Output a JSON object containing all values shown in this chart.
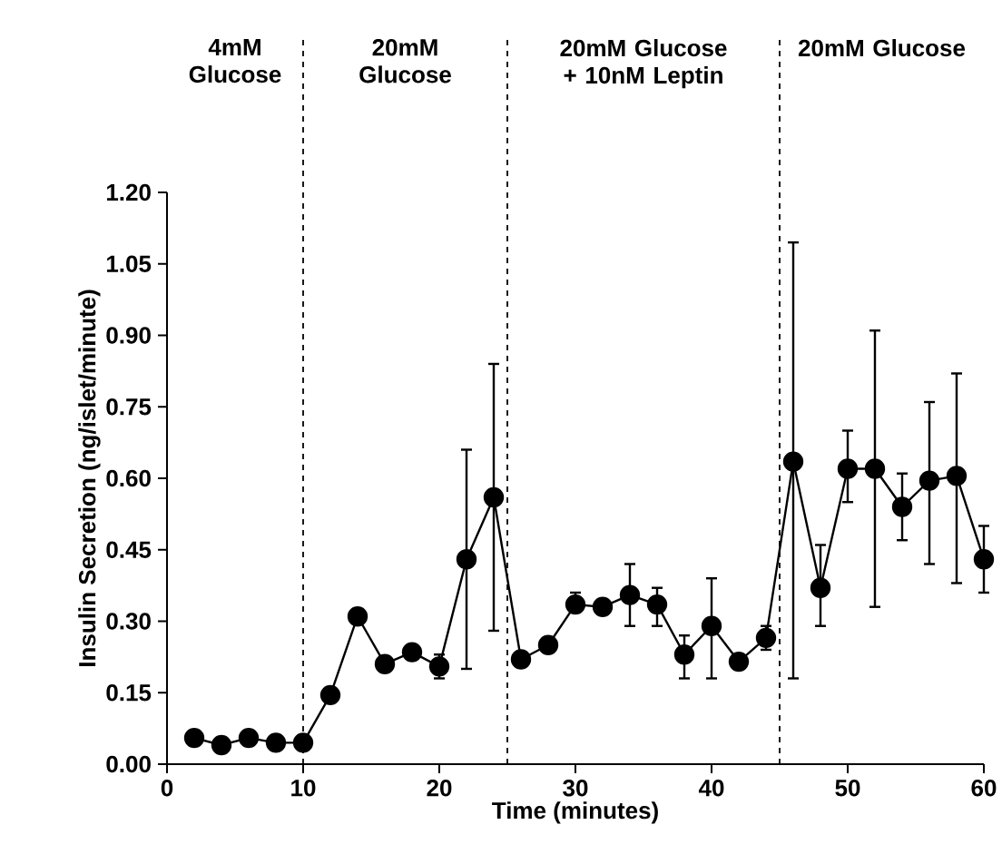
{
  "chart_data": {
    "type": "line",
    "xlabel": "Time (minutes)",
    "ylabel": "Insulin Secretion (ng/islet/minute)",
    "x": [
      2,
      4,
      6,
      8,
      10,
      12,
      14,
      16,
      18,
      20,
      22,
      24,
      26,
      28,
      30,
      32,
      34,
      36,
      38,
      40,
      42,
      44,
      46,
      48,
      50,
      52,
      54,
      56,
      58,
      60
    ],
    "series": [
      {
        "color": "#000000",
        "marker": "circle",
        "line_style": "solid",
        "values": [
          0.055,
          0.04,
          0.055,
          0.045,
          0.045,
          0.145,
          0.31,
          0.21,
          0.235,
          0.205,
          0.43,
          0.56,
          0.22,
          0.25,
          0.335,
          0.33,
          0.355,
          0.335,
          0.23,
          0.29,
          0.215,
          0.265,
          0.635,
          0.37,
          0.62,
          0.62,
          0.54,
          0.595,
          0.605,
          0.43
        ],
        "errors": [
          null,
          null,
          null,
          null,
          null,
          null,
          null,
          null,
          null,
          [
            0.18,
            0.23
          ],
          [
            0.2,
            0.66
          ],
          [
            0.28,
            0.84
          ],
          null,
          null,
          [
            0.32,
            0.36
          ],
          null,
          [
            0.29,
            0.42
          ],
          [
            0.29,
            0.37
          ],
          [
            0.18,
            0.27
          ],
          [
            0.18,
            0.39
          ],
          null,
          [
            0.24,
            0.29
          ],
          [
            0.18,
            1.095
          ],
          [
            0.29,
            0.46
          ],
          [
            0.55,
            0.7
          ],
          [
            0.33,
            0.91
          ],
          [
            0.47,
            0.61
          ],
          [
            0.42,
            0.76
          ],
          [
            0.38,
            0.82
          ],
          [
            0.36,
            0.5
          ]
        ]
      }
    ],
    "xlim": [
      0,
      60
    ],
    "xticks": [
      0,
      10,
      20,
      30,
      40,
      50,
      60
    ],
    "ylim": [
      0,
      1.2
    ],
    "yticks": [
      {
        "value": 0,
        "label": "0.00"
      },
      {
        "value": 0.15,
        "label": "0.15"
      },
      {
        "value": 0.3,
        "label": "0.30"
      },
      {
        "value": 0.45,
        "label": "0.45"
      },
      {
        "value": 0.6,
        "label": "0.60"
      },
      {
        "value": 0.75,
        "label": "0.75"
      },
      {
        "value": 0.9,
        "label": "0.90"
      },
      {
        "value": 1.05,
        "label": "1.05"
      },
      {
        "value": 1.2,
        "label": "1.20"
      }
    ],
    "ref_lines": [
      {
        "axis": "x",
        "value": 10,
        "line_style": "dashed"
      },
      {
        "axis": "x",
        "value": 25,
        "line_style": "dashed"
      },
      {
        "axis": "x",
        "value": 45,
        "line_style": "dashed"
      }
    ],
    "annotations": [
      "4mM Glucose",
      "20mM Glucose",
      "20mM Glucose + 10nM Leptin",
      "20mM Glucose"
    ],
    "grid": false
  }
}
